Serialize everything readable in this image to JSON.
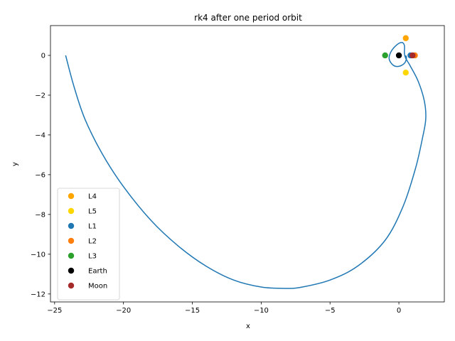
{
  "chart_data": {
    "type": "scatter",
    "title": "rk4 after one period orbit",
    "xlabel": "x",
    "ylabel": "y",
    "xlim": [
      -25.3,
      3.3
    ],
    "ylim": [
      -12.4,
      1.5
    ],
    "xticks": [
      -25,
      -20,
      -15,
      -10,
      -5,
      0
    ],
    "yticks": [
      -12,
      -10,
      -8,
      -6,
      -4,
      -2,
      0
    ],
    "grid": false,
    "legend_position": "lower-left",
    "orbit": {
      "color": "#1f77b4",
      "points": [
        [
          -24.2,
          0.0
        ],
        [
          -23.6,
          -1.55
        ],
        [
          -22.8,
          -3.2
        ],
        [
          -21.5,
          -5.0
        ],
        [
          -20.0,
          -6.6
        ],
        [
          -18.0,
          -8.3
        ],
        [
          -16.0,
          -9.6
        ],
        [
          -14.0,
          -10.6
        ],
        [
          -12.0,
          -11.3
        ],
        [
          -10.0,
          -11.65
        ],
        [
          -8.2,
          -11.72
        ],
        [
          -7.0,
          -11.65
        ],
        [
          -5.0,
          -11.3
        ],
        [
          -3.0,
          -10.6
        ],
        [
          -1.0,
          -9.3
        ],
        [
          0.3,
          -7.6
        ],
        [
          1.2,
          -5.7
        ],
        [
          1.7,
          -4.2
        ],
        [
          1.95,
          -3.2
        ],
        [
          1.85,
          -2.3
        ],
        [
          1.4,
          -1.3
        ],
        [
          0.8,
          -0.5
        ],
        [
          0.5,
          -0.15
        ],
        [
          0.4,
          0.1
        ],
        [
          0.4,
          0.5
        ],
        [
          0.2,
          0.65
        ],
        [
          -0.2,
          0.5
        ],
        [
          -0.6,
          0.15
        ],
        [
          -0.7,
          -0.2
        ],
        [
          -0.4,
          -0.5
        ],
        [
          0.0,
          -0.55
        ],
        [
          0.4,
          -0.4
        ],
        [
          0.55,
          -0.15
        ],
        [
          0.5,
          0.0
        ]
      ]
    },
    "series": [
      {
        "name": "L4",
        "color": "#ffa500",
        "points": [
          [
            0.5,
            0.866
          ]
        ]
      },
      {
        "name": "L5",
        "color": "#ffd700",
        "points": [
          [
            0.5,
            -0.866
          ]
        ]
      },
      {
        "name": "L1",
        "color": "#1f77b4",
        "points": [
          [
            0.84,
            0.0
          ]
        ]
      },
      {
        "name": "L2",
        "color": "#ff7f0e",
        "points": [
          [
            1.16,
            0.0
          ]
        ]
      },
      {
        "name": "L3",
        "color": "#2ca02c",
        "points": [
          [
            -1.0,
            0.0
          ]
        ]
      },
      {
        "name": "Earth",
        "color": "#000000",
        "points": [
          [
            0.0,
            0.0
          ]
        ]
      },
      {
        "name": "Moon",
        "color": "#a52a2a",
        "points": [
          [
            0.99,
            0.0
          ]
        ]
      }
    ]
  }
}
